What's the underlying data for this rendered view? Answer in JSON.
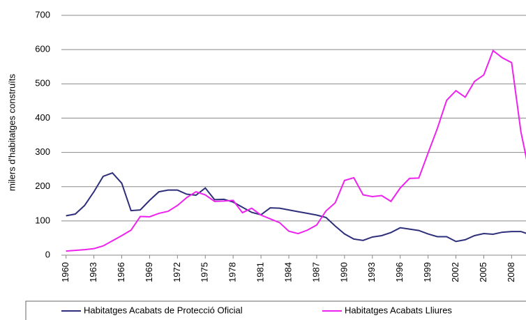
{
  "chart_data": {
    "type": "line",
    "y_label": "milers d'habitatges construïts",
    "x": [
      1960,
      1961,
      1962,
      1963,
      1964,
      1965,
      1966,
      1967,
      1968,
      1969,
      1970,
      1971,
      1972,
      1973,
      1974,
      1975,
      1976,
      1977,
      1978,
      1979,
      1980,
      1981,
      1982,
      1983,
      1984,
      1985,
      1986,
      1987,
      1988,
      1989,
      1990,
      1991,
      1992,
      1993,
      1994,
      1995,
      1996,
      1997,
      1998,
      1999,
      2000,
      2001,
      2002,
      2003,
      2004,
      2005,
      2006,
      2007,
      2008,
      2009,
      2010
    ],
    "series": [
      {
        "name": "Habitatges Acabats de Protecció Oficial",
        "color": "#2e2f7a",
        "values": [
          115,
          120,
          145,
          185,
          230,
          240,
          210,
          130,
          132,
          160,
          185,
          190,
          190,
          178,
          175,
          196,
          162,
          163,
          155,
          140,
          125,
          118,
          138,
          137,
          132,
          127,
          122,
          117,
          110,
          85,
          62,
          47,
          43,
          53,
          57,
          66,
          80,
          76,
          72,
          62,
          54,
          54,
          40,
          45,
          57,
          63,
          61,
          67,
          69,
          69,
          60
        ]
      },
      {
        "name": "Habitatges Acabats Lliures",
        "color": "#ee22ee",
        "values": [
          12,
          14,
          16,
          19,
          27,
          42,
          57,
          73,
          113,
          112,
          122,
          128,
          145,
          168,
          185,
          176,
          157,
          158,
          160,
          124,
          137,
          117,
          106,
          95,
          70,
          63,
          73,
          88,
          129,
          153,
          218,
          226,
          176,
          171,
          174,
          157,
          196,
          224,
          225,
          298,
          370,
          452,
          480,
          461,
          507,
          526,
          597,
          576,
          562,
          360,
          230
        ]
      }
    ],
    "xlim": [
      1959.5,
      2010
    ],
    "xticks": [
      1960,
      1963,
      1966,
      1969,
      1972,
      1975,
      1978,
      1981,
      1984,
      1987,
      1990,
      1993,
      1996,
      1999,
      2002,
      2005,
      2008
    ],
    "ylim": [
      0,
      700
    ],
    "yticks": [
      0,
      100,
      200,
      300,
      400,
      500,
      600,
      700
    ],
    "grid": true,
    "legend": "bottom"
  }
}
